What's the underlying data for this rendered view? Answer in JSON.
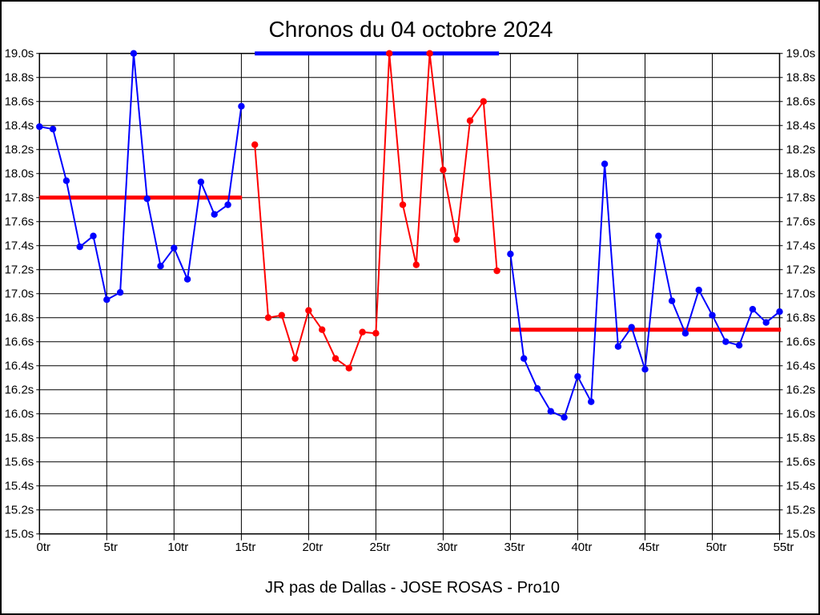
{
  "header": {
    "title": "Chronos du 04 octobre 2024"
  },
  "footer": {
    "caption": "JR pas de Dallas - JOSE ROSAS - Pro10"
  },
  "colors": {
    "blue_series": "#0000ff",
    "red_series": "#ff0000",
    "grid": "#000000",
    "background": "#ffffff"
  },
  "chart_data": {
    "type": "line",
    "title": "Chronos du 04 octobre 2024",
    "footer": "JR pas de Dallas - JOSE ROSAS - Pro10",
    "xlabel": "",
    "ylabel": "",
    "xlim": [
      0,
      55
    ],
    "ylim": [
      15.0,
      19.0
    ],
    "grid": true,
    "legend": "none",
    "x_tick_values": [
      0,
      5,
      10,
      15,
      20,
      25,
      30,
      35,
      40,
      45,
      50,
      55
    ],
    "x_tick_labels": [
      "0tr",
      "5tr",
      "10tr",
      "15tr",
      "20tr",
      "25tr",
      "30tr",
      "35tr",
      "40tr",
      "45tr",
      "50tr",
      "55tr"
    ],
    "y_tick_values": [
      19.0,
      18.8,
      18.6,
      18.4,
      18.2,
      18.0,
      17.8,
      17.6,
      17.4,
      17.2,
      17.0,
      16.8,
      16.6,
      16.4,
      16.2,
      16.0,
      15.8,
      15.6,
      15.4,
      15.2,
      15.0
    ],
    "y_tick_labels": [
      "19.0s",
      "18.8s",
      "18.6s",
      "18.4s",
      "18.2s",
      "18.0s",
      "17.8s",
      "17.6s",
      "17.4s",
      "17.2s",
      "17.0s",
      "16.8s",
      "16.6s",
      "16.4s",
      "16.2s",
      "16.0s",
      "15.8s",
      "15.6s",
      "15.4s",
      "15.2s",
      "15.0s"
    ],
    "series": [
      {
        "name": "laps-blue-heat-1",
        "color": "#0000ff",
        "x": [
          0,
          1,
          2,
          3,
          4,
          5,
          6,
          7,
          8,
          9,
          10,
          11,
          12,
          13,
          14,
          15
        ],
        "values": [
          18.39,
          18.37,
          17.94,
          17.39,
          17.48,
          16.95,
          17.01,
          19.0,
          17.79,
          17.23,
          17.38,
          17.12,
          17.93,
          17.66,
          17.74,
          18.56
        ]
      },
      {
        "name": "laps-red-heat-2",
        "color": "#ff0000",
        "x": [
          16,
          17,
          18,
          19,
          20,
          21,
          22,
          23,
          24,
          25,
          26,
          27,
          28,
          29,
          30,
          31,
          32,
          33,
          34
        ],
        "values": [
          18.24,
          16.8,
          16.82,
          16.46,
          16.86,
          16.7,
          16.46,
          16.38,
          16.68,
          16.67,
          19.0,
          17.74,
          17.24,
          19.0,
          18.03,
          17.45,
          18.44,
          18.6,
          17.19
        ]
      },
      {
        "name": "laps-blue-heat-3",
        "color": "#0000ff",
        "x": [
          35,
          36,
          37,
          38,
          39,
          40,
          41,
          42,
          43,
          44,
          45,
          46,
          47,
          48,
          49,
          50,
          51,
          52,
          53,
          54,
          55
        ],
        "values": [
          17.33,
          16.46,
          16.21,
          16.02,
          15.97,
          16.31,
          16.1,
          18.08,
          16.56,
          16.72,
          16.37,
          17.48,
          16.94,
          16.67,
          17.03,
          16.82,
          16.6,
          16.57,
          16.87,
          16.76,
          16.85
        ]
      }
    ],
    "reference_lines": [
      {
        "name": "average-heat-1",
        "color": "#ff0000",
        "y": 17.8,
        "x_start": 0,
        "x_end": 15.05
      },
      {
        "name": "average-heat-2",
        "color": "#0000ff",
        "y": 19.0,
        "x_start": 16,
        "x_end": 34.15
      },
      {
        "name": "average-heat-3",
        "color": "#ff0000",
        "y": 16.7,
        "x_start": 35,
        "x_end": 55.1
      }
    ]
  }
}
